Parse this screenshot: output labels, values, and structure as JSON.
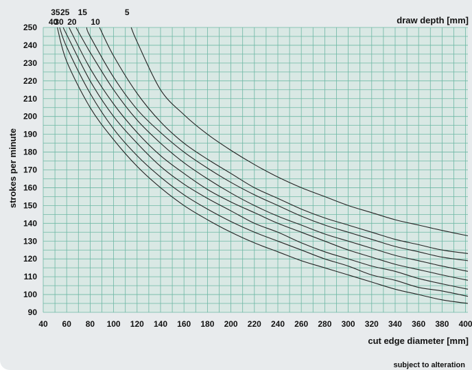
{
  "chart_data": {
    "type": "line",
    "title": "",
    "xlabel": "cut edge diameter [mm]",
    "ylabel": "strokes per minute",
    "legend_title": "draw depth [mm]",
    "note": "subject to alteration",
    "xlim": [
      40,
      402
    ],
    "ylim": [
      90,
      250
    ],
    "xticks": [
      40,
      60,
      80,
      100,
      120,
      140,
      160,
      180,
      200,
      220,
      240,
      260,
      280,
      300,
      320,
      340,
      360,
      380,
      400
    ],
    "yticks": [
      90,
      100,
      110,
      120,
      130,
      140,
      150,
      160,
      170,
      180,
      190,
      200,
      210,
      220,
      230,
      240,
      250
    ],
    "grid": true,
    "colors": {
      "plot_bg": "#d9e8e4",
      "grid": "#6db7a4",
      "line": "#222222",
      "panel": "#e8ebed"
    },
    "series": [
      {
        "name": "5",
        "x": [
          115,
          120,
          140,
          160,
          180,
          200,
          220,
          240,
          260,
          280,
          300,
          320,
          340,
          360,
          380,
          402
        ],
        "y": [
          250,
          242,
          215,
          201,
          190,
          181,
          173,
          166,
          160,
          155,
          150,
          146,
          142,
          139,
          136,
          133
        ]
      },
      {
        "name": "10",
        "x": [
          88,
          100,
          120,
          140,
          160,
          180,
          200,
          220,
          240,
          260,
          280,
          300,
          320,
          340,
          360,
          380,
          402
        ],
        "y": [
          250,
          234,
          213,
          197,
          185,
          176,
          168,
          160,
          154,
          148,
          143,
          139,
          135,
          131,
          128,
          125,
          123
        ]
      },
      {
        "name": "15",
        "x": [
          77,
          80,
          100,
          120,
          140,
          160,
          180,
          200,
          220,
          240,
          260,
          280,
          300,
          320,
          340,
          360,
          380,
          402
        ],
        "y": [
          250,
          245,
          222,
          204,
          191,
          180,
          171,
          163,
          156,
          150,
          144,
          139,
          135,
          131,
          127,
          124,
          121,
          119
        ]
      },
      {
        "name": "20",
        "x": [
          68,
          80,
          100,
          120,
          140,
          160,
          180,
          200,
          220,
          240,
          260,
          280,
          300,
          320,
          340,
          360,
          380,
          402
        ],
        "y": [
          250,
          236,
          215,
          198,
          185,
          174,
          165,
          157,
          150,
          144,
          139,
          134,
          130,
          126,
          122,
          119,
          116,
          113
        ]
      },
      {
        "name": "25",
        "x": [
          62,
          80,
          100,
          120,
          140,
          160,
          180,
          200,
          220,
          240,
          260,
          280,
          300,
          320,
          340,
          360,
          380,
          402
        ],
        "y": [
          250,
          227,
          207,
          191,
          178,
          168,
          159,
          152,
          146,
          140,
          135,
          130,
          125,
          121,
          117,
          114,
          111,
          108
        ]
      },
      {
        "name": "30",
        "x": [
          57,
          60,
          80,
          100,
          120,
          140,
          160,
          180,
          200,
          220,
          240,
          260,
          280,
          300,
          320,
          340,
          360,
          380,
          402
        ],
        "y": [
          250,
          246,
          220,
          200,
          185,
          172,
          162,
          154,
          147,
          140,
          135,
          129,
          124,
          120,
          116,
          113,
          109,
          106,
          103
        ]
      },
      {
        "name": "35",
        "x": [
          54,
          60,
          80,
          100,
          120,
          140,
          160,
          180,
          200,
          220,
          240,
          260,
          280,
          300,
          320,
          340,
          360,
          380,
          402
        ],
        "y": [
          250,
          239,
          213,
          193,
          178,
          166,
          156,
          148,
          141,
          135,
          130,
          125,
          120,
          116,
          111,
          108,
          104,
          102,
          99
        ]
      },
      {
        "name": "40",
        "x": [
          52,
          60,
          80,
          100,
          120,
          140,
          160,
          180,
          200,
          220,
          240,
          260,
          280,
          300,
          320,
          340,
          360,
          380,
          402
        ],
        "y": [
          250,
          231,
          205,
          187,
          172,
          160,
          150,
          142,
          135,
          129,
          124,
          119,
          115,
          111,
          107,
          103,
          100,
          97,
          95
        ]
      }
    ]
  }
}
